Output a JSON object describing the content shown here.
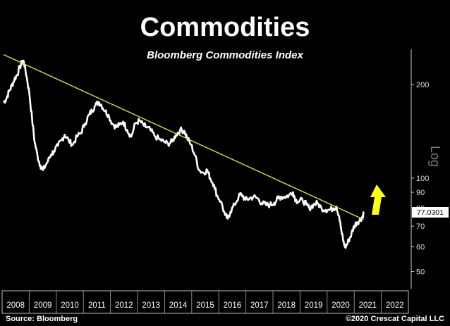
{
  "chart_data": {
    "type": "line",
    "title": "Commodities",
    "subtitle": "Bloomberg Commodities Index",
    "ylabel": "Log",
    "y_scale": "log",
    "ylim": [
      44,
      260
    ],
    "y_ticks": [
      50,
      60,
      70,
      80,
      90,
      100,
      200
    ],
    "xlim": [
      2007.75,
      2022.75
    ],
    "x_tick_labels": [
      "2008",
      "2009",
      "2010",
      "2011",
      "2012",
      "2013",
      "2014",
      "2015",
      "2016",
      "2017",
      "2018",
      "2019",
      "2020",
      "2021",
      "2022"
    ],
    "last_value_label": "77.0301",
    "series": [
      {
        "values": [
          [
            2007.75,
            175
          ],
          [
            2007.85,
            180
          ],
          [
            2007.95,
            190
          ],
          [
            2008.05,
            198
          ],
          [
            2008.15,
            208
          ],
          [
            2008.25,
            215
          ],
          [
            2008.35,
            228
          ],
          [
            2008.45,
            238
          ],
          [
            2008.5,
            237
          ],
          [
            2008.6,
            212
          ],
          [
            2008.7,
            188
          ],
          [
            2008.8,
            155
          ],
          [
            2008.9,
            130
          ],
          [
            2009.0,
            118
          ],
          [
            2009.1,
            110
          ],
          [
            2009.2,
            106
          ],
          [
            2009.35,
            112
          ],
          [
            2009.5,
            119
          ],
          [
            2009.6,
            122
          ],
          [
            2009.75,
            127
          ],
          [
            2009.9,
            133
          ],
          [
            2010.0,
            138
          ],
          [
            2010.15,
            132
          ],
          [
            2010.3,
            128
          ],
          [
            2010.45,
            136
          ],
          [
            2010.6,
            140
          ],
          [
            2010.75,
            150
          ],
          [
            2010.9,
            160
          ],
          [
            2011.0,
            165
          ],
          [
            2011.1,
            170
          ],
          [
            2011.25,
            176
          ],
          [
            2011.35,
            172
          ],
          [
            2011.5,
            164
          ],
          [
            2011.6,
            160
          ],
          [
            2011.75,
            150
          ],
          [
            2011.9,
            146
          ],
          [
            2012.0,
            148
          ],
          [
            2012.15,
            152
          ],
          [
            2012.3,
            143
          ],
          [
            2012.45,
            136
          ],
          [
            2012.6,
            150
          ],
          [
            2012.75,
            153
          ],
          [
            2012.9,
            148
          ],
          [
            2013.0,
            146
          ],
          [
            2013.15,
            143
          ],
          [
            2013.3,
            137
          ],
          [
            2013.5,
            133
          ],
          [
            2013.65,
            131
          ],
          [
            2013.8,
            129
          ],
          [
            2013.95,
            131
          ],
          [
            2014.1,
            138
          ],
          [
            2014.25,
            143
          ],
          [
            2014.4,
            142
          ],
          [
            2014.5,
            135
          ],
          [
            2014.65,
            128
          ],
          [
            2014.8,
            118
          ],
          [
            2014.95,
            106
          ],
          [
            2015.1,
            104
          ],
          [
            2015.25,
            106
          ],
          [
            2015.35,
            100
          ],
          [
            2015.5,
            95
          ],
          [
            2015.6,
            88
          ],
          [
            2015.75,
            84
          ],
          [
            2015.9,
            76
          ],
          [
            2016.0,
            74
          ],
          [
            2016.1,
            78
          ],
          [
            2016.25,
            82
          ],
          [
            2016.4,
            87
          ],
          [
            2016.5,
            89
          ],
          [
            2016.65,
            85
          ],
          [
            2016.8,
            86
          ],
          [
            2016.95,
            87
          ],
          [
            2017.1,
            86
          ],
          [
            2017.25,
            83
          ],
          [
            2017.4,
            82
          ],
          [
            2017.55,
            82
          ],
          [
            2017.7,
            83
          ],
          [
            2017.85,
            86
          ],
          [
            2017.95,
            87
          ],
          [
            2018.1,
            87
          ],
          [
            2018.25,
            88
          ],
          [
            2018.4,
            90
          ],
          [
            2018.5,
            85
          ],
          [
            2018.6,
            84
          ],
          [
            2018.75,
            85
          ],
          [
            2018.9,
            82
          ],
          [
            2019.0,
            80
          ],
          [
            2019.15,
            82
          ],
          [
            2019.3,
            83
          ],
          [
            2019.45,
            80
          ],
          [
            2019.6,
            79
          ],
          [
            2019.75,
            79
          ],
          [
            2019.9,
            80
          ],
          [
            2020.0,
            81
          ],
          [
            2020.1,
            75
          ],
          [
            2020.2,
            66
          ],
          [
            2020.28,
            61
          ],
          [
            2020.35,
            60
          ],
          [
            2020.45,
            63
          ],
          [
            2020.55,
            66
          ],
          [
            2020.65,
            70
          ],
          [
            2020.75,
            72
          ],
          [
            2020.85,
            73
          ],
          [
            2020.95,
            75
          ],
          [
            2021.0,
            77
          ]
        ]
      }
    ],
    "trendline": [
      [
        2007.75,
        250
      ],
      [
        2021.0,
        73.5
      ]
    ],
    "annotation_arrow": {
      "direction": "up",
      "color": "#ffff1a"
    },
    "colors": {
      "background": "#000000",
      "series": "#ffffff",
      "trendline": "#e0e04a",
      "arrow": "#ffff1a"
    }
  },
  "footer": {
    "source": "Source: Bloomberg",
    "copyright": "©2020 Crescat Capital LLC"
  }
}
